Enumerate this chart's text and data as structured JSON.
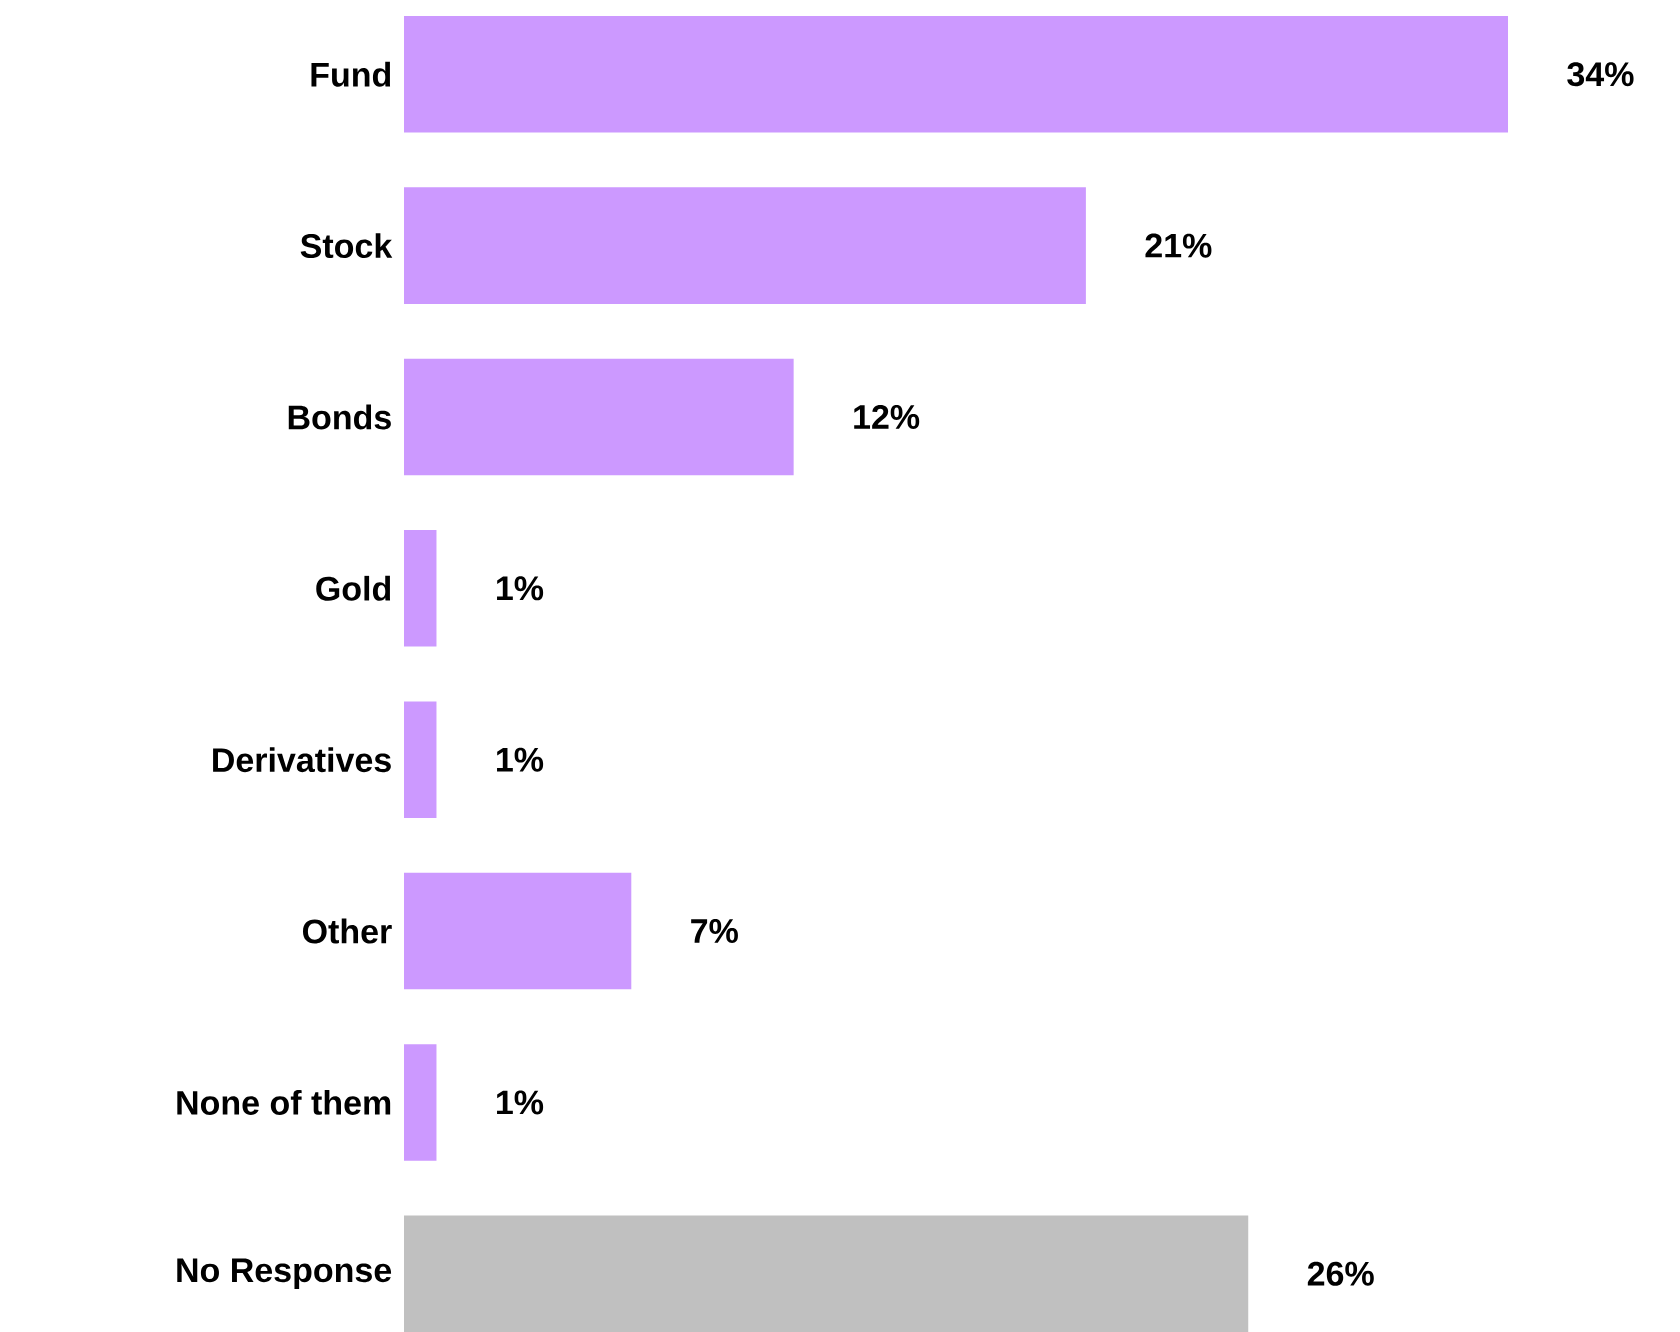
{
  "chart_data": {
    "type": "bar",
    "orientation": "horizontal",
    "categories": [
      "Fund",
      "Stock",
      "Bonds",
      "Gold",
      "Derivatives",
      "Other",
      "None of them",
      "No Response"
    ],
    "values": [
      34,
      21,
      12,
      1,
      1,
      7,
      1,
      26
    ],
    "value_labels": [
      "34%",
      "21%",
      "12%",
      "1%",
      "1%",
      "7%",
      "1%",
      "26%"
    ],
    "colors": [
      "#cc99ff",
      "#cc99ff",
      "#cc99ff",
      "#cc99ff",
      "#cc99ff",
      "#cc99ff",
      "#cc99ff",
      "#c0c0c0"
    ]
  }
}
